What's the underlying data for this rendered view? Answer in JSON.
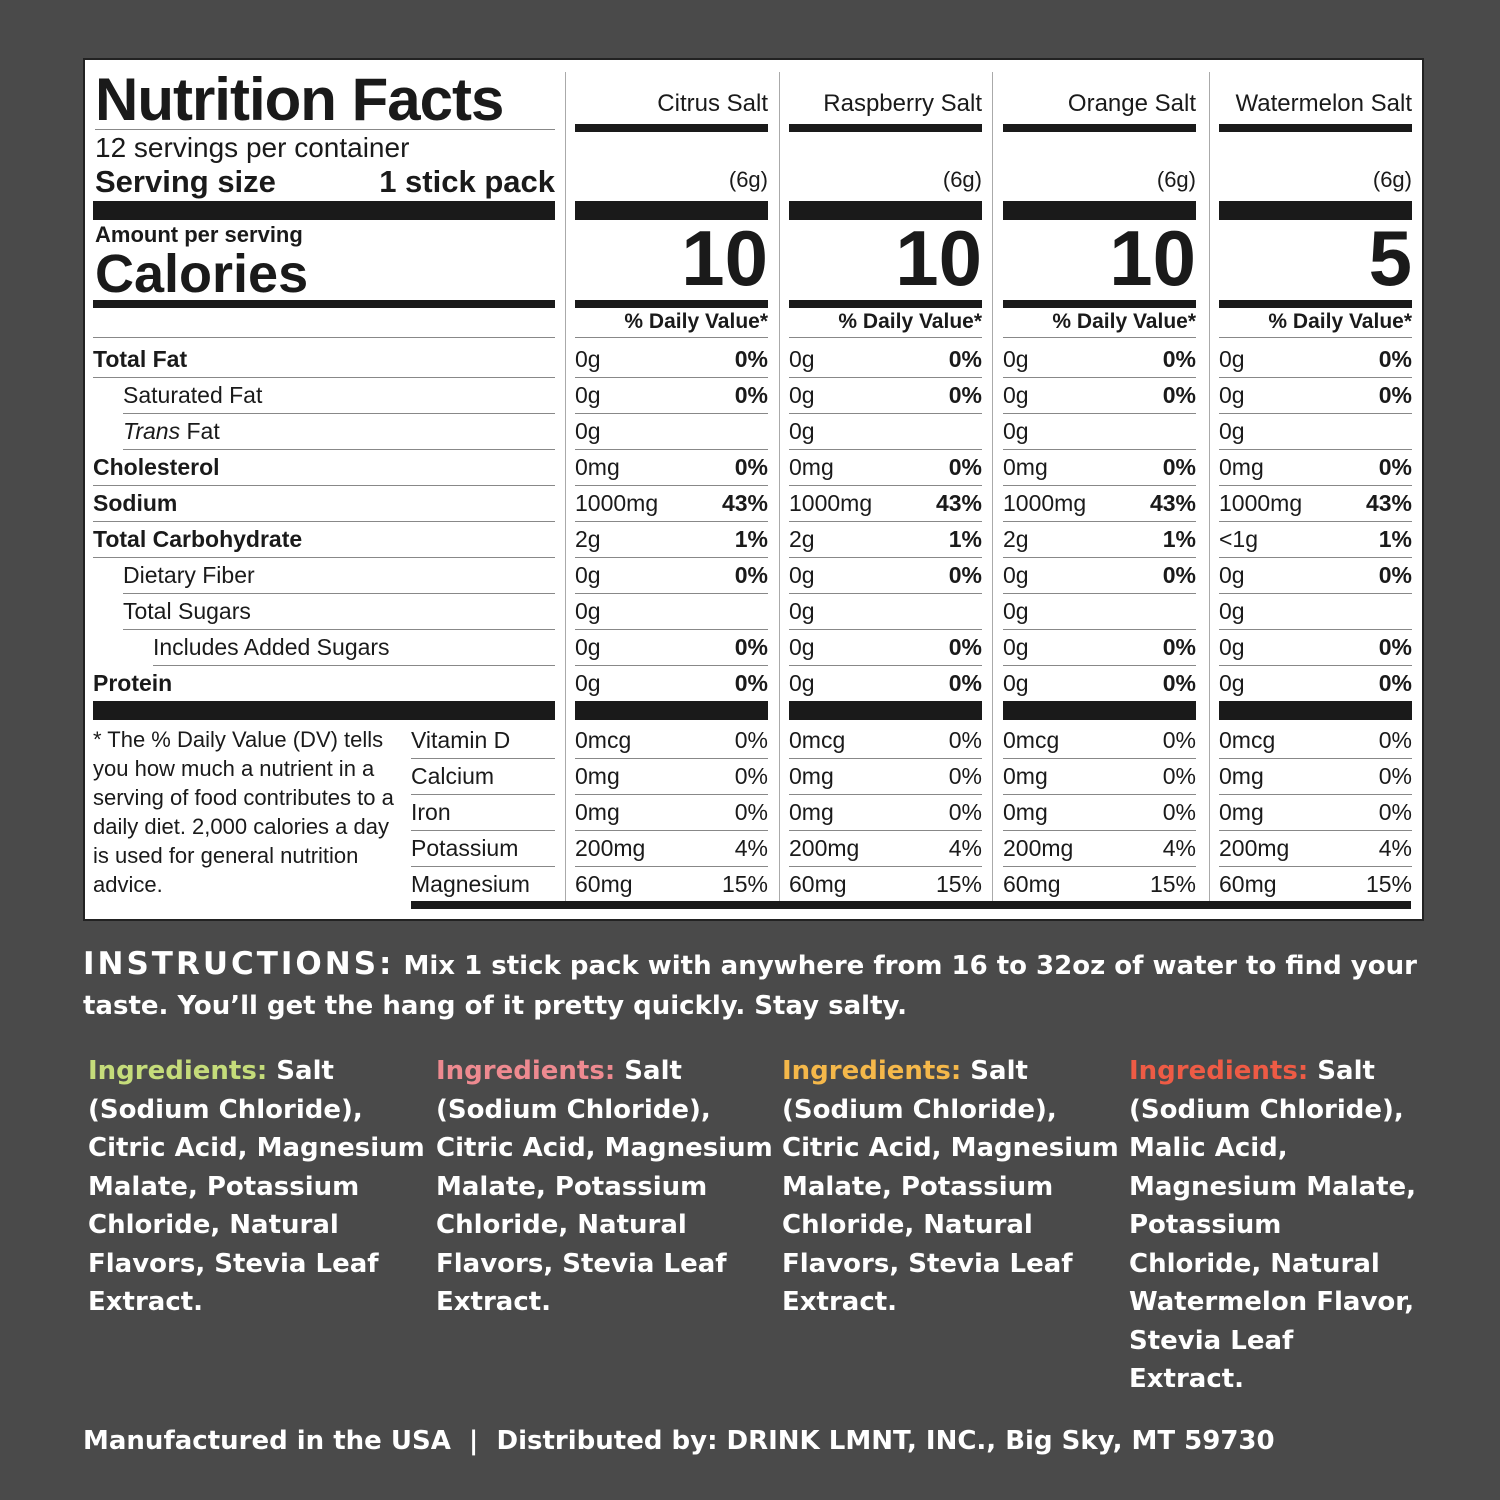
{
  "label": {
    "title": "Nutrition Facts",
    "servings": "12 servings per container",
    "serving_size_label": "Serving size",
    "serving_size_value": "1 stick pack",
    "amount_per_serving": "Amount per serving",
    "calories_label": "Calories",
    "dv_header": "% Daily Value*",
    "nutrients": [
      {
        "label": "Total Fat",
        "style": "bold"
      },
      {
        "label": "Saturated Fat",
        "style": "indent"
      },
      {
        "label_italic": "Trans",
        "label": " Fat",
        "style": "indent"
      },
      {
        "label": "Cholesterol",
        "style": "bold"
      },
      {
        "label": "Sodium",
        "style": "bold"
      },
      {
        "label": "Total Carbohydrate",
        "style": "bold"
      },
      {
        "label": "Dietary Fiber",
        "style": "indent"
      },
      {
        "label": "Total Sugars",
        "style": "indent"
      },
      {
        "label": "Includes Added Sugars",
        "style": "indent2"
      },
      {
        "label": "Protein",
        "style": "bold"
      }
    ],
    "vitamins": [
      "Vitamin D",
      "Calcium",
      "Iron",
      "Potassium",
      "Magnesium"
    ],
    "footnote": "* The % Daily Value (DV) tells you how much a nutrient in a serving of food contributes to a daily diet. 2,000 calories a day is used for general nutrition advice.",
    "products": [
      {
        "name": "Citrus Salt",
        "serving": "(6g)",
        "calories": "10",
        "nutrients": [
          [
            "0g",
            "0%"
          ],
          [
            "0g",
            "0%"
          ],
          [
            "0g",
            ""
          ],
          [
            "0mg",
            "0%"
          ],
          [
            "1000mg",
            "43%"
          ],
          [
            "2g",
            "1%"
          ],
          [
            "0g",
            "0%"
          ],
          [
            "0g",
            ""
          ],
          [
            "0g",
            "0%"
          ],
          [
            "0g",
            "0%"
          ]
        ],
        "vitamins": [
          [
            "0mcg",
            "0%"
          ],
          [
            "0mg",
            "0%"
          ],
          [
            "0mg",
            "0%"
          ],
          [
            "200mg",
            "4%"
          ],
          [
            "60mg",
            "15%"
          ]
        ]
      },
      {
        "name": "Raspberry Salt",
        "serving": "(6g)",
        "calories": "10",
        "nutrients": [
          [
            "0g",
            "0%"
          ],
          [
            "0g",
            "0%"
          ],
          [
            "0g",
            ""
          ],
          [
            "0mg",
            "0%"
          ],
          [
            "1000mg",
            "43%"
          ],
          [
            "2g",
            "1%"
          ],
          [
            "0g",
            "0%"
          ],
          [
            "0g",
            ""
          ],
          [
            "0g",
            "0%"
          ],
          [
            "0g",
            "0%"
          ]
        ],
        "vitamins": [
          [
            "0mcg",
            "0%"
          ],
          [
            "0mg",
            "0%"
          ],
          [
            "0mg",
            "0%"
          ],
          [
            "200mg",
            "4%"
          ],
          [
            "60mg",
            "15%"
          ]
        ]
      },
      {
        "name": "Orange Salt",
        "serving": "(6g)",
        "calories": "10",
        "nutrients": [
          [
            "0g",
            "0%"
          ],
          [
            "0g",
            "0%"
          ],
          [
            "0g",
            ""
          ],
          [
            "0mg",
            "0%"
          ],
          [
            "1000mg",
            "43%"
          ],
          [
            "2g",
            "1%"
          ],
          [
            "0g",
            "0%"
          ],
          [
            "0g",
            ""
          ],
          [
            "0g",
            "0%"
          ],
          [
            "0g",
            "0%"
          ]
        ],
        "vitamins": [
          [
            "0mcg",
            "0%"
          ],
          [
            "0mg",
            "0%"
          ],
          [
            "0mg",
            "0%"
          ],
          [
            "200mg",
            "4%"
          ],
          [
            "60mg",
            "15%"
          ]
        ]
      },
      {
        "name": "Watermelon Salt",
        "serving": "(6g)",
        "calories": "5",
        "nutrients": [
          [
            "0g",
            "0%"
          ],
          [
            "0g",
            "0%"
          ],
          [
            "0g",
            ""
          ],
          [
            "0mg",
            "0%"
          ],
          [
            "1000mg",
            "43%"
          ],
          [
            "<1g",
            "1%"
          ],
          [
            "0g",
            "0%"
          ],
          [
            "0g",
            ""
          ],
          [
            "0g",
            "0%"
          ],
          [
            "0g",
            "0%"
          ]
        ],
        "vitamins": [
          [
            "0mcg",
            "0%"
          ],
          [
            "0mg",
            "0%"
          ],
          [
            "0mg",
            "0%"
          ],
          [
            "200mg",
            "4%"
          ],
          [
            "60mg",
            "15%"
          ]
        ]
      }
    ]
  },
  "instructions": {
    "heading": "INSTRUCTIONS:",
    "text": "Mix 1 stick pack with anywhere from 16 to 32oz of water to find your taste. You’ll get the hang of it pretty quickly. Stay salty."
  },
  "ingredients": [
    {
      "heading": "Ingredients:",
      "text": "Salt (Sodium Chloride), Citric Acid, Magnesium Malate, Potassium Chloride, Natural Flavors, Stevia Leaf Extract.",
      "color": "#c5dc7a"
    },
    {
      "heading": "Ingredients:",
      "text": "Salt (Sodium Chloride), Citric Acid, Magnesium Malate, Potassium Chloride, Natural Flavors, Stevia Leaf Extract.",
      "color": "#ee8a90"
    },
    {
      "heading": "Ingredients:",
      "text": "Salt (Sodium Chloride), Citric Acid, Magnesium Malate, Potassium Chloride, Natural Flavors, Stevia Leaf Extract.",
      "color": "#f5b84a"
    },
    {
      "heading": "Ingredients:",
      "text": "Salt (Sodium Chloride), Malic Acid, Magnesium Malate, Potassium Chloride, Natural Watermelon Flavor, Stevia Leaf Extract.",
      "color": "#ee5b45"
    }
  ],
  "footer": "Manufactured in the USA  |  Distributed by: DRINK LMNT, INC., Big Sky, MT 59730",
  "colors": {
    "background": "#4a4a4a",
    "label": "#ffffff"
  }
}
